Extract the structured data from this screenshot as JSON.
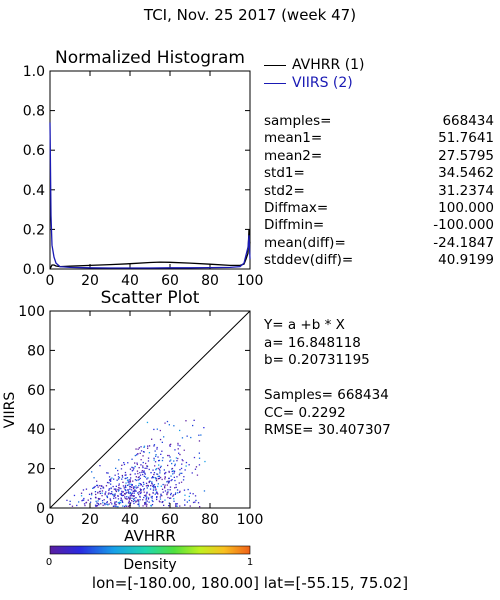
{
  "title": "TCI,  Nov. 25 2017 (week 47)",
  "histogram": {
    "title": "Normalized Histogram",
    "legend": [
      {
        "label": "AVHRR (1)",
        "color": "#000000"
      },
      {
        "label": "VIIRS (2)",
        "color": "#1a1ab4"
      }
    ],
    "x_ticks": [
      "0",
      "20",
      "40",
      "60",
      "80",
      "100"
    ],
    "y_ticks": [
      "0.0",
      "0.2",
      "0.4",
      "0.6",
      "0.8",
      "1.0"
    ]
  },
  "stats": [
    {
      "label": "samples=",
      "value": "668434"
    },
    {
      "label": "mean1=",
      "value": "51.7641"
    },
    {
      "label": "mean2=",
      "value": "27.5795"
    },
    {
      "label": "std1=",
      "value": "34.5462"
    },
    {
      "label": "std2=",
      "value": "31.2374"
    },
    {
      "label": "Diffmax=",
      "value": "100.000"
    },
    {
      "label": "Diffmin=",
      "value": "-100.000"
    },
    {
      "label": "mean(diff)=",
      "value": "-24.1847"
    },
    {
      "label": "stddev(diff)=",
      "value": "40.9199"
    }
  ],
  "scatter": {
    "title": "Scatter Plot",
    "xlabel": "AVHRR",
    "ylabel": "VIIRS",
    "x_ticks": [
      "0",
      "20",
      "40",
      "60",
      "80",
      "100"
    ],
    "y_ticks": [
      "0",
      "20",
      "40",
      "60",
      "80",
      "100"
    ]
  },
  "regression": {
    "equation": "Y= a +b * X",
    "a": "a= 16.848118",
    "b": "b= 0.20731195",
    "samples": "Samples= 668434",
    "cc": "CC=  0.2292",
    "rmse": "RMSE= 30.407307"
  },
  "colorbar": {
    "label": "Density",
    "min": "0",
    "max": "1"
  },
  "footer": {
    "lon": "lon=[-180.00, 180.00]",
    "lat": "lat=[-55.15, 75.02]"
  },
  "chart_data": [
    {
      "type": "line",
      "title": "Normalized Histogram",
      "xlim": [
        0,
        100
      ],
      "ylim": [
        0,
        1
      ],
      "series": [
        {
          "name": "AVHRR (1)",
          "color": "#000000",
          "x": [
            0,
            0.5,
            1,
            2,
            3,
            5,
            10,
            20,
            30,
            40,
            50,
            55,
            60,
            70,
            80,
            90,
            95,
            97,
            98,
            99,
            99.5,
            100
          ],
          "y": [
            0.0,
            0.01,
            0.02,
            0.02,
            0.015,
            0.012,
            0.014,
            0.018,
            0.022,
            0.027,
            0.033,
            0.035,
            0.034,
            0.03,
            0.024,
            0.018,
            0.018,
            0.025,
            0.05,
            0.08,
            0.2,
            0.13
          ]
        },
        {
          "name": "VIIRS (2)",
          "color": "#1a1ab4",
          "x": [
            0,
            0.5,
            1,
            2,
            3,
            5,
            10,
            20,
            30,
            40,
            50,
            60,
            70,
            80,
            90,
            95,
            97,
            98,
            99,
            99.5,
            100
          ],
          "y": [
            0.74,
            0.27,
            0.12,
            0.06,
            0.03,
            0.012,
            0.008,
            0.006,
            0.005,
            0.005,
            0.005,
            0.006,
            0.006,
            0.007,
            0.008,
            0.012,
            0.03,
            0.07,
            0.11,
            0.17,
            0.05
          ]
        }
      ]
    },
    {
      "type": "scatter",
      "title": "Scatter Plot",
      "xlabel": "AVHRR",
      "ylabel": "VIIRS",
      "xlim": [
        0,
        100
      ],
      "ylim": [
        0,
        100
      ],
      "reference_line": {
        "x": [
          0,
          100
        ],
        "y": [
          0,
          100
        ]
      },
      "point_cloud": {
        "x_range": [
          8,
          90
        ],
        "y_range": [
          0,
          62
        ],
        "peak_density_at": [
          45,
          8
        ],
        "count_drawn": 700
      }
    }
  ]
}
